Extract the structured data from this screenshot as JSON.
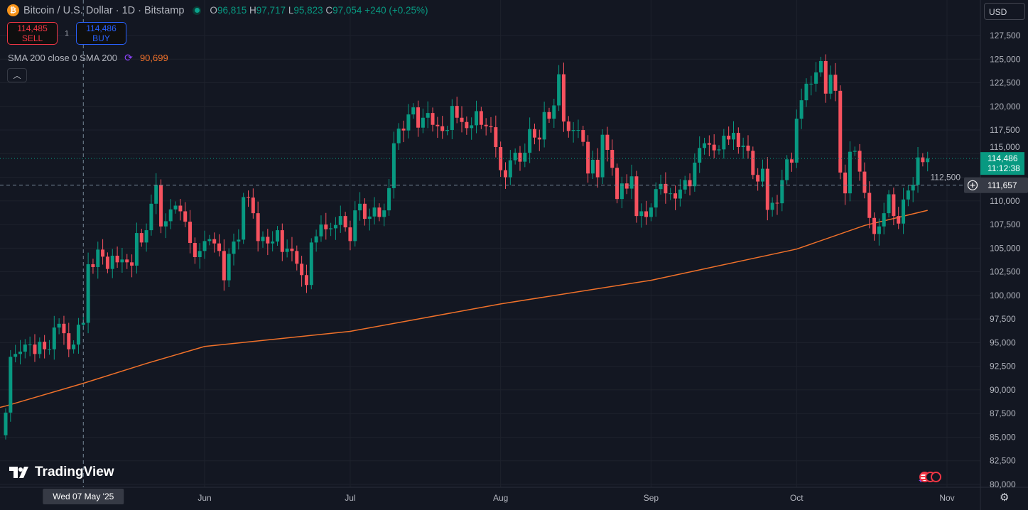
{
  "header": {
    "symbol_title": "Bitcoin / U.S. Dollar · 1D · Bitstamp",
    "ohlc": {
      "o_label": "O",
      "o": "96,815",
      "h_label": "H",
      "h": "97,717",
      "l_label": "L",
      "l": "95,823",
      "c_label": "C",
      "c": "97,054",
      "change": "+240 (+0.25%)"
    }
  },
  "trade": {
    "sell_price": "114,485",
    "sell_label": "SELL",
    "spread": "1",
    "buy_price": "114,486",
    "buy_label": "BUY"
  },
  "indicator": {
    "label": "SMA 200 close 0 SMA 200",
    "value": "90,699"
  },
  "currency": "USD",
  "branding": "TradingView",
  "colors": {
    "up": "#089981",
    "down": "#f7525f",
    "sma": "#f0712a",
    "background": "#131722",
    "grid": "#1e222d"
  },
  "chart_data": {
    "type": "candlestick",
    "title": "Bitcoin / U.S. Dollar · 1D · Bitstamp",
    "start_date": "2025-04-21",
    "interval": "1D",
    "note": "open = previous close",
    "first_open": 85200,
    "closes": [
      87600,
      93500,
      93800,
      94050,
      94800,
      94800,
      93800,
      95100,
      94300,
      94300,
      96600,
      97000,
      96000,
      94300,
      94800,
      96900,
      97100,
      103300,
      103000,
      104850,
      104100,
      102800,
      104200,
      103500,
      103800,
      103500,
      103150,
      106600,
      105600,
      106900,
      109700,
      111700,
      107300,
      107850,
      109100,
      109500,
      108900,
      107800,
      105550,
      104050,
      104700,
      105750,
      105950,
      105500,
      104700,
      101600,
      104400,
      105700,
      105900,
      110400,
      110350,
      108700,
      105750,
      106200,
      105500,
      105700,
      106900,
      104600,
      104950,
      104700,
      103350,
      102150,
      101100,
      105600,
      106250,
      107500,
      107000,
      107100,
      107450,
      108400,
      107200,
      105750,
      109000,
      109700,
      108100,
      108350,
      109300,
      108300,
      109000,
      111350,
      116100,
      117650,
      117450,
      119150,
      119900,
      117750,
      118800,
      119300,
      118050,
      117900,
      117400,
      117500,
      120050,
      118800,
      118350,
      117700,
      118000,
      119500,
      118050,
      117900,
      117800,
      115700,
      113250,
      112500,
      114300,
      115100,
      114150,
      115100,
      117600,
      116700,
      116500,
      119400,
      118700,
      120100,
      123400,
      118400,
      117400,
      117500,
      117500,
      116250,
      112900,
      114350,
      112500,
      117000,
      115400,
      113500,
      110200,
      111850,
      111300,
      112600,
      108400,
      108900,
      108300,
      109300,
      111250,
      111800,
      110800,
      110800,
      110250,
      111200,
      112200,
      111550,
      114050,
      115600,
      116100,
      115950,
      115350,
      115450,
      116900,
      116500,
      117200,
      115700,
      115850,
      115300,
      112750,
      112050,
      113400,
      109050,
      109800,
      109750,
      112200,
      114400,
      114050,
      118700,
      120650,
      122400,
      122400,
      123600,
      124800,
      121350,
      123350,
      121650,
      113000,
      110800,
      115200,
      115300,
      113100,
      110850,
      108200,
      106500,
      107300,
      108700,
      110700,
      108400,
      107600,
      110150,
      111100,
      111700,
      114600,
      114100,
      114486
    ],
    "sma200": {
      "name": "SMA 200",
      "points": [
        [
          0,
          88300
        ],
        [
          16,
          90699
        ],
        [
          29,
          92800
        ],
        [
          41,
          94600
        ],
        [
          71,
          96200
        ],
        [
          85,
          97500
        ],
        [
          102,
          99100
        ],
        [
          133,
          101600
        ],
        [
          163,
          104900
        ],
        [
          177,
          107400
        ],
        [
          190,
          109000
        ]
      ]
    },
    "y_ticks": [
      "127,500",
      "125,000",
      "122,500",
      "120,000",
      "117,500",
      "115,000",
      "112,500",
      "110,000",
      "107,500",
      "105,000",
      "102,500",
      "100,000",
      "97,500",
      "95,000",
      "92,500",
      "90,000",
      "87,500",
      "85,000",
      "82,500",
      "80,000"
    ],
    "y_tick_values": [
      127500,
      125000,
      122500,
      120000,
      117500,
      115000,
      112500,
      110000,
      107500,
      105000,
      102500,
      100000,
      97500,
      95000,
      92500,
      90000,
      87500,
      85000,
      82500,
      80000
    ],
    "x_ticks": [
      {
        "label": "Jun",
        "index": 41
      },
      {
        "label": "Jul",
        "index": 71
      },
      {
        "label": "Aug",
        "index": 102
      },
      {
        "label": "Sep",
        "index": 133
      },
      {
        "label": "Oct",
        "index": 163
      },
      {
        "label": "Nov",
        "index": 194
      }
    ],
    "ylim": [
      80000,
      127500
    ],
    "last_price": {
      "price": "114,486",
      "price_value": 114486,
      "countdown": "11:12:38"
    },
    "crosshair": {
      "date_label": "Wed 07 May '25",
      "index": 16,
      "price": "111,657",
      "price_value": 111657
    }
  }
}
